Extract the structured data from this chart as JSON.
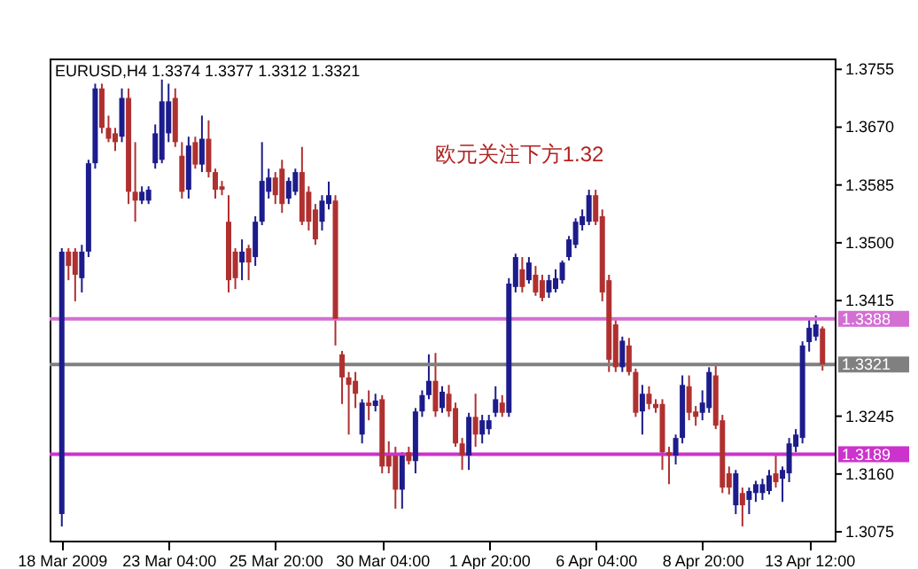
{
  "chart_data": {
    "type": "candlestick",
    "title": "EURUSD,H4  1.3374 1.3377 1.3312 1.3321",
    "annotations": [
      "欧元关注下方1.32"
    ],
    "categories": [
      "18 Mar 2009",
      null,
      null,
      null,
      null,
      null,
      null,
      null,
      null,
      null,
      null,
      null,
      null,
      null,
      null,
      null,
      "23 Mar 04:00",
      null,
      null,
      null,
      null,
      null,
      null,
      null,
      null,
      null,
      null,
      null,
      null,
      null,
      null,
      null,
      "25 Mar 20:00",
      null,
      null,
      null,
      null,
      null,
      null,
      null,
      null,
      null,
      null,
      null,
      null,
      null,
      null,
      null,
      "30 Mar 04:00",
      null,
      null,
      null,
      null,
      null,
      null,
      null,
      null,
      null,
      null,
      null,
      null,
      null,
      null,
      null,
      "1 Apr 20:00",
      null,
      null,
      null,
      null,
      null,
      null,
      null,
      null,
      null,
      null,
      null,
      null,
      null,
      null,
      null,
      "6 Apr 04:00",
      null,
      null,
      null,
      null,
      null,
      null,
      null,
      null,
      null,
      null,
      null,
      null,
      null,
      null,
      null,
      "8 Apr 20:00",
      null,
      null,
      null,
      null,
      null,
      null,
      null,
      null,
      null,
      null,
      null,
      null,
      null,
      null,
      null,
      "13 Apr 12:00",
      null,
      null
    ],
    "ohlc": [
      [
        1.3101,
        1.3492,
        1.3083,
        1.3487
      ],
      [
        1.3487,
        1.3492,
        1.3445,
        1.3466
      ],
      [
        1.3487,
        1.3492,
        1.3414,
        1.3453
      ],
      [
        1.3448,
        1.3497,
        1.3427,
        1.3487
      ],
      [
        1.3487,
        1.3622,
        1.3479,
        1.3617
      ],
      [
        1.3617,
        1.3734,
        1.3609,
        1.3727
      ],
      [
        1.3727,
        1.3734,
        1.3661,
        1.3669
      ],
      [
        1.3669,
        1.3687,
        1.3648,
        1.3653
      ],
      [
        1.3661,
        1.3669,
        1.3635,
        1.3648
      ],
      [
        1.3656,
        1.3727,
        1.3648,
        1.3713
      ],
      [
        1.3713,
        1.3727,
        1.3557,
        1.3575
      ],
      [
        1.3575,
        1.3648,
        1.3531,
        1.3562
      ],
      [
        1.3562,
        1.3583,
        1.3557,
        1.3575
      ],
      [
        1.3562,
        1.3583,
        1.3557,
        1.3578
      ],
      [
        1.3617,
        1.3674,
        1.3609,
        1.3661
      ],
      [
        1.3622,
        1.374,
        1.3617,
        1.3708
      ],
      [
        1.3661,
        1.3734,
        1.3648,
        1.3708
      ],
      [
        1.3713,
        1.3727,
        1.3641,
        1.3648
      ],
      [
        1.3628,
        1.3648,
        1.3565,
        1.3575
      ],
      [
        1.3578,
        1.3656,
        1.3565,
        1.3643
      ],
      [
        1.3648,
        1.3656,
        1.3609,
        1.3615
      ],
      [
        1.3615,
        1.3687,
        1.3604,
        1.3653
      ],
      [
        1.3653,
        1.368,
        1.3596,
        1.3604
      ],
      [
        1.3604,
        1.3609,
        1.3565,
        1.3578
      ],
      [
        1.3583,
        1.3591,
        1.357,
        1.3578
      ],
      [
        1.3531,
        1.357,
        1.3427,
        1.3445
      ],
      [
        1.3487,
        1.3492,
        1.3432,
        1.3448
      ],
      [
        1.3471,
        1.3505,
        1.3445,
        1.3487
      ],
      [
        1.3492,
        1.3497,
        1.3445,
        1.3471
      ],
      [
        1.3479,
        1.3539,
        1.3466,
        1.3531
      ],
      [
        1.3531,
        1.3648,
        1.3526,
        1.3591
      ],
      [
        1.3575,
        1.3609,
        1.3565,
        1.3596
      ],
      [
        1.3596,
        1.3604,
        1.3557,
        1.357
      ],
      [
        1.3609,
        1.3622,
        1.3544,
        1.3557
      ],
      [
        1.3565,
        1.3596,
        1.3557,
        1.3591
      ],
      [
        1.3575,
        1.3609,
        1.357,
        1.3604
      ],
      [
        1.3604,
        1.3641,
        1.3526,
        1.3531
      ],
      [
        1.3575,
        1.3583,
        1.3518,
        1.3531
      ],
      [
        1.3549,
        1.3557,
        1.3497,
        1.3505
      ],
      [
        1.3531,
        1.357,
        1.3518,
        1.3562
      ],
      [
        1.3557,
        1.359,
        1.3549,
        1.357
      ],
      [
        1.3562,
        1.357,
        1.3349,
        1.3388
      ],
      [
        1.3336,
        1.3341,
        1.3263,
        1.3302
      ],
      [
        1.3302,
        1.331,
        1.3218,
        1.3291
      ],
      [
        1.3297,
        1.331,
        1.3257,
        1.3278
      ],
      [
        1.3218,
        1.327,
        1.3205,
        1.3265
      ],
      [
        1.3265,
        1.3283,
        1.3239,
        1.326
      ],
      [
        1.326,
        1.3278,
        1.3252,
        1.3268
      ],
      [
        1.327,
        1.3276,
        1.3161,
        1.3171
      ],
      [
        1.3187,
        1.3208,
        1.3161,
        1.3171
      ],
      [
        1.3187,
        1.32,
        1.3109,
        1.3137
      ],
      [
        1.3137,
        1.3192,
        1.3109,
        1.3187
      ],
      [
        1.3192,
        1.32,
        1.3174,
        1.3179
      ],
      [
        1.3179,
        1.3257,
        1.3161,
        1.3252
      ],
      [
        1.3252,
        1.3283,
        1.3244,
        1.3276
      ],
      [
        1.3276,
        1.3336,
        1.327,
        1.3297
      ],
      [
        1.3297,
        1.3338,
        1.3244,
        1.3252
      ],
      [
        1.3257,
        1.3289,
        1.325,
        1.3281
      ],
      [
        1.3278,
        1.3291,
        1.3244,
        1.3252
      ],
      [
        1.3257,
        1.3265,
        1.32,
        1.3205
      ],
      [
        1.3205,
        1.3213,
        1.3166,
        1.3187
      ],
      [
        1.3187,
        1.325,
        1.3166,
        1.3244
      ],
      [
        1.3244,
        1.3278,
        1.32,
        1.3218
      ],
      [
        1.3218,
        1.3247,
        1.3205,
        1.3239
      ],
      [
        1.3226,
        1.3247,
        1.3218,
        1.3239
      ],
      [
        1.325,
        1.3289,
        1.3244,
        1.327
      ],
      [
        1.3265,
        1.3276,
        1.3244,
        1.325
      ],
      [
        1.325,
        1.3448,
        1.3244,
        1.344
      ],
      [
        1.3435,
        1.3484,
        1.3427,
        1.3479
      ],
      [
        1.3461,
        1.3479,
        1.3427,
        1.3435
      ],
      [
        1.3445,
        1.3479,
        1.344,
        1.3471
      ],
      [
        1.3453,
        1.3466,
        1.3422,
        1.3427
      ],
      [
        1.3445,
        1.3453,
        1.3414,
        1.3419
      ],
      [
        1.3427,
        1.3453,
        1.3419,
        1.3445
      ],
      [
        1.3432,
        1.3461,
        1.3427,
        1.3448
      ],
      [
        1.3445,
        1.3474,
        1.344,
        1.3471
      ],
      [
        1.3479,
        1.351,
        1.3474,
        1.3505
      ],
      [
        1.3497,
        1.3536,
        1.3492,
        1.3531
      ],
      [
        1.3526,
        1.3549,
        1.3518,
        1.3539
      ],
      [
        1.3531,
        1.3578,
        1.3526,
        1.357
      ],
      [
        1.357,
        1.3578,
        1.3526,
        1.3531
      ],
      [
        1.3539,
        1.3549,
        1.3414,
        1.3427
      ],
      [
        1.3445,
        1.3453,
        1.331,
        1.3328
      ],
      [
        1.338,
        1.3388,
        1.331,
        1.3317
      ],
      [
        1.3317,
        1.3362,
        1.331,
        1.3356
      ],
      [
        1.3349,
        1.336,
        1.3305,
        1.331
      ],
      [
        1.331,
        1.3315,
        1.3244,
        1.325
      ],
      [
        1.3252,
        1.3291,
        1.3218,
        1.3278
      ],
      [
        1.3278,
        1.3289,
        1.3255,
        1.3263
      ],
      [
        1.3263,
        1.327,
        1.325,
        1.3257
      ],
      [
        1.3263,
        1.327,
        1.3166,
        1.3192
      ],
      [
        1.3192,
        1.32,
        1.3145,
        1.3187
      ],
      [
        1.3187,
        1.3218,
        1.3174,
        1.3213
      ],
      [
        1.3213,
        1.3305,
        1.3205,
        1.3291
      ],
      [
        1.3289,
        1.3305,
        1.3239,
        1.325
      ],
      [
        1.3252,
        1.326,
        1.3231,
        1.3244
      ],
      [
        1.325,
        1.3283,
        1.3239,
        1.3265
      ],
      [
        1.3257,
        1.3317,
        1.325,
        1.331
      ],
      [
        1.3305,
        1.3323,
        1.3226,
        1.3231
      ],
      [
        1.3239,
        1.3247,
        1.3132,
        1.314
      ],
      [
        1.3161,
        1.3171,
        1.313,
        1.314
      ],
      [
        1.3114,
        1.3166,
        1.3101,
        1.3161
      ],
      [
        1.3132,
        1.314,
        1.3083,
        1.3114
      ],
      [
        1.3122,
        1.314,
        1.3101,
        1.3135
      ],
      [
        1.3132,
        1.315,
        1.3119,
        1.3145
      ],
      [
        1.3132,
        1.3153,
        1.3122,
        1.3145
      ],
      [
        1.3135,
        1.3166,
        1.313,
        1.3158
      ],
      [
        1.3161,
        1.3187,
        1.314,
        1.3148
      ],
      [
        1.3153,
        1.3171,
        1.3119,
        1.3166
      ],
      [
        1.3161,
        1.3213,
        1.3148,
        1.3205
      ],
      [
        1.32,
        1.3226,
        1.3192,
        1.3218
      ],
      [
        1.3213,
        1.3355,
        1.3205,
        1.3349
      ],
      [
        1.3354,
        1.3388,
        1.334,
        1.3375
      ],
      [
        1.3362,
        1.3393,
        1.3356,
        1.338
      ],
      [
        1.3374,
        1.3377,
        1.3312,
        1.3321
      ]
    ],
    "colors": [
      "#1c1c8c",
      "#b03030",
      "#b03030",
      "#1c1c8c",
      "#1c1c8c",
      "#1c1c8c",
      "#b03030",
      "#b03030",
      "#b03030",
      "#1c1c8c",
      "#b03030",
      "#b03030",
      "#1c1c8c",
      "#1c1c8c",
      "#1c1c8c",
      "#1c1c8c",
      "#1c1c8c",
      "#b03030",
      "#b03030",
      "#1c1c8c",
      "#b03030",
      "#1c1c8c",
      "#b03030",
      "#b03030",
      "#b03030",
      "#b03030",
      "#b03030",
      "#1c1c8c",
      "#b03030",
      "#1c1c8c",
      "#1c1c8c",
      "#1c1c8c",
      "#b03030",
      "#b03030",
      "#1c1c8c",
      "#1c1c8c",
      "#b03030",
      "#b03030",
      "#b03030",
      "#1c1c8c",
      "#1c1c8c",
      "#b03030",
      "#b03030",
      "#b03030",
      "#b03030",
      "#1c1c8c",
      "#b03030",
      "#1c1c8c",
      "#b03030",
      "#b03030",
      "#b03030",
      "#1c1c8c",
      "#b03030",
      "#1c1c8c",
      "#1c1c8c",
      "#1c1c8c",
      "#b03030",
      "#1c1c8c",
      "#b03030",
      "#b03030",
      "#b03030",
      "#1c1c8c",
      "#b03030",
      "#1c1c8c",
      "#1c1c8c",
      "#1c1c8c",
      "#b03030",
      "#1c1c8c",
      "#1c1c8c",
      "#b03030",
      "#1c1c8c",
      "#b03030",
      "#b03030",
      "#1c1c8c",
      "#1c1c8c",
      "#1c1c8c",
      "#1c1c8c",
      "#1c1c8c",
      "#1c1c8c",
      "#1c1c8c",
      "#b03030",
      "#b03030",
      "#b03030",
      "#b03030",
      "#1c1c8c",
      "#b03030",
      "#b03030",
      "#1c1c8c",
      "#b03030",
      "#b03030",
      "#b03030",
      "#b03030",
      "#1c1c8c",
      "#1c1c8c",
      "#b03030",
      "#b03030",
      "#1c1c8c",
      "#1c1c8c",
      "#b03030",
      "#b03030",
      "#b03030",
      "#1c1c8c",
      "#b03030",
      "#1c1c8c",
      "#1c1c8c",
      "#1c1c8c",
      "#1c1c8c",
      "#b03030",
      "#1c1c8c",
      "#1c1c8c",
      "#1c1c8c",
      "#1c1c8c",
      "#1c1c8c",
      "#1c1c8c",
      "#b03030"
    ],
    "ylim": [
      1.3062,
      1.3771
    ],
    "yticks": [
      1.3755,
      {
        "value": 1.367,
        "label": "1.3670"
      },
      1.3585,
      {
        "value": 1.35,
        "label": "1.3500"
      },
      1.3415,
      1.3245,
      {
        "value": 1.316,
        "label": "1.3160"
      },
      1.3075
    ],
    "ref_lines": [
      {
        "axis": "y",
        "value": 1.3388,
        "label": "1.3388",
        "color": "#d36fd3"
      },
      {
        "axis": "y",
        "value": 1.3321,
        "label": "1.3321",
        "color": "#808080"
      },
      {
        "axis": "y",
        "value": 1.3189,
        "label": "1.3189",
        "color": "#cc33cc"
      }
    ]
  }
}
